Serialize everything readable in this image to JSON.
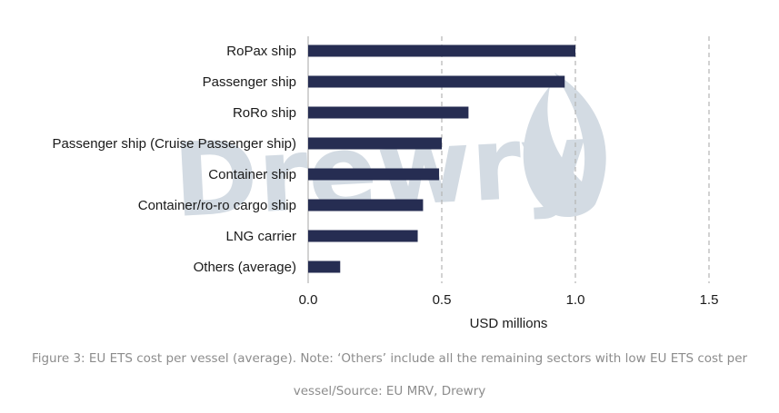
{
  "chart_data": {
    "type": "bar",
    "orientation": "horizontal",
    "categories": [
      "RoPax ship",
      "Passenger ship",
      "RoRo ship",
      "Passenger ship (Cruise Passenger ship)",
      "Container ship",
      "Container/ro-ro cargo ship",
      "LNG carrier",
      "Others (average)"
    ],
    "values": [
      1.0,
      0.96,
      0.6,
      0.5,
      0.49,
      0.43,
      0.41,
      0.12
    ],
    "xlabel": "USD millions",
    "xlim": [
      0,
      1.5
    ],
    "xticks": [
      "0.0",
      "0.5",
      "1.0",
      "1.5"
    ],
    "grid": "vertical dashed",
    "bar_color": "#262d52"
  },
  "watermark": {
    "text": "Drewry",
    "color": "#d3dbe3"
  },
  "caption": "Figure 3: EU ETS cost per vessel (average). Note: ‘Others’ include all the remaining sectors with low EU ETS cost per vessel/Source: EU MRV, Drewry"
}
